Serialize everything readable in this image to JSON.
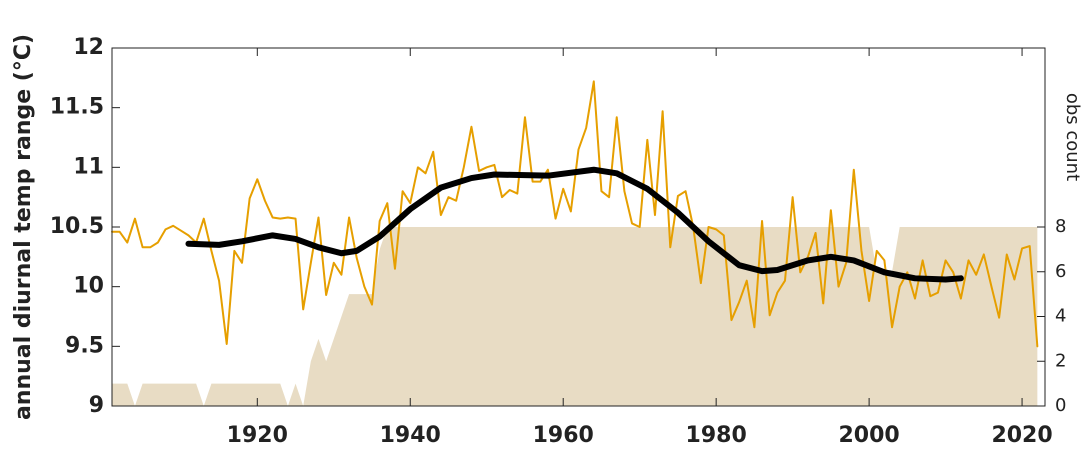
{
  "chart_data": {
    "type": "line",
    "ylabel": "annual diurnal temp range (°C)",
    "y2label": "obs count",
    "xlim": [
      1901,
      2023
    ],
    "xticks": [
      1920,
      1940,
      1960,
      1980,
      2000,
      2020
    ],
    "ylim": [
      9,
      12
    ],
    "yticks": [
      9,
      9.5,
      10,
      10.5,
      11,
      11.5,
      12
    ],
    "y2lim": [
      0,
      16
    ],
    "y2ticks": [
      0,
      2,
      4,
      6,
      8
    ],
    "series": [
      {
        "kind": "area",
        "axis": "y2",
        "color": "#e8dcc4",
        "x": [
          1901,
          1902,
          1903,
          1904,
          1905,
          1906,
          1907,
          1908,
          1909,
          1910,
          1911,
          1912,
          1913,
          1914,
          1915,
          1916,
          1917,
          1918,
          1919,
          1920,
          1921,
          1922,
          1923,
          1924,
          1925,
          1926,
          1927,
          1928,
          1929,
          1930,
          1931,
          1932,
          1933,
          1934,
          1935,
          1936,
          1937,
          1938,
          1939,
          1940,
          1941,
          1942,
          1943,
          1944,
          1945,
          1946,
          1947,
          1948,
          1949,
          1950,
          1951,
          1952,
          1953,
          1954,
          1955,
          1956,
          1957,
          1958,
          1959,
          1960,
          1961,
          1962,
          1963,
          1964,
          1965,
          1966,
          1967,
          1968,
          1969,
          1970,
          1971,
          1972,
          1973,
          1974,
          1975,
          1976,
          1977,
          1978,
          1979,
          1980,
          1981,
          1982,
          1983,
          1984,
          1985,
          1986,
          1987,
          1988,
          1989,
          1990,
          1991,
          1992,
          1993,
          1994,
          1995,
          1996,
          1997,
          1998,
          1999,
          2000,
          2001,
          2002,
          2003,
          2004,
          2005,
          2006,
          2007,
          2008,
          2009,
          2010,
          2011,
          2012,
          2013,
          2014,
          2015,
          2016,
          2017,
          2018,
          2019,
          2020,
          2021,
          2022
        ],
        "values": [
          1,
          1,
          1,
          0,
          1,
          1,
          1,
          1,
          1,
          1,
          1,
          1,
          0,
          1,
          1,
          1,
          1,
          1,
          1,
          1,
          1,
          1,
          1,
          0,
          1,
          0,
          2,
          3,
          2,
          3,
          4,
          5,
          5,
          5,
          5,
          7,
          8,
          8,
          8,
          8,
          8,
          8,
          8,
          8,
          8,
          8,
          8,
          8,
          8,
          8,
          8,
          8,
          8,
          8,
          8,
          8,
          8,
          8,
          8,
          8,
          8,
          8,
          8,
          8,
          8,
          8,
          8,
          8,
          8,
          8,
          8,
          8,
          8,
          8,
          8,
          8,
          8,
          8,
          8,
          8,
          8,
          8,
          8,
          8,
          8,
          8,
          8,
          8,
          8,
          8,
          8,
          8,
          8,
          8,
          8,
          8,
          8,
          8,
          8,
          8,
          6,
          6,
          6,
          8,
          8,
          8,
          8,
          8,
          8,
          8,
          8,
          8,
          8,
          8,
          8,
          8,
          8,
          8,
          8,
          8,
          8,
          8
        ]
      },
      {
        "kind": "line",
        "color": "#e69f00",
        "width": 2,
        "x": [
          1901,
          1902,
          1903,
          1904,
          1905,
          1906,
          1907,
          1908,
          1909,
          1910,
          1911,
          1912,
          1913,
          1914,
          1915,
          1916,
          1917,
          1918,
          1919,
          1920,
          1921,
          1922,
          1923,
          1924,
          1925,
          1926,
          1927,
          1928,
          1929,
          1930,
          1931,
          1932,
          1933,
          1934,
          1935,
          1936,
          1937,
          1938,
          1939,
          1940,
          1941,
          1942,
          1943,
          1944,
          1945,
          1946,
          1947,
          1948,
          1949,
          1950,
          1951,
          1952,
          1953,
          1954,
          1955,
          1956,
          1957,
          1958,
          1959,
          1960,
          1961,
          1962,
          1963,
          1964,
          1965,
          1966,
          1967,
          1968,
          1969,
          1970,
          1971,
          1972,
          1973,
          1974,
          1975,
          1976,
          1977,
          1978,
          1979,
          1980,
          1981,
          1982,
          1983,
          1984,
          1985,
          1986,
          1987,
          1988,
          1989,
          1990,
          1991,
          1992,
          1993,
          1994,
          1995,
          1996,
          1997,
          1998,
          1999,
          2000,
          2001,
          2002,
          2003,
          2004,
          2005,
          2006,
          2007,
          2008,
          2009,
          2010,
          2011,
          2012,
          2013,
          2014,
          2015,
          2016,
          2017,
          2018,
          2019,
          2020,
          2021,
          2022
        ],
        "values": [
          10.46,
          10.46,
          10.37,
          10.57,
          10.33,
          10.33,
          10.37,
          10.48,
          10.51,
          10.47,
          10.43,
          10.37,
          10.57,
          10.3,
          10.05,
          9.52,
          10.3,
          10.2,
          10.74,
          10.9,
          10.72,
          10.58,
          10.57,
          10.58,
          10.57,
          9.81,
          10.2,
          10.58,
          9.93,
          10.2,
          10.1,
          10.58,
          10.24,
          10.0,
          9.85,
          10.55,
          10.7,
          10.15,
          10.8,
          10.7,
          11.0,
          10.95,
          11.13,
          10.6,
          10.75,
          10.72,
          11.0,
          11.34,
          10.97,
          11.0,
          11.02,
          10.75,
          10.81,
          10.78,
          11.42,
          10.88,
          10.88,
          10.98,
          10.57,
          10.82,
          10.63,
          11.15,
          11.33,
          11.72,
          10.8,
          10.75,
          11.42,
          10.8,
          10.53,
          10.5,
          11.23,
          10.6,
          11.47,
          10.33,
          10.76,
          10.8,
          10.5,
          10.03,
          10.5,
          10.48,
          10.43,
          9.72,
          9.87,
          10.05,
          9.66,
          10.55,
          9.76,
          9.95,
          10.05,
          10.75,
          10.12,
          10.25,
          10.45,
          9.86,
          10.64,
          10.0,
          10.2,
          10.98,
          10.3,
          9.88,
          10.3,
          10.22,
          9.66,
          10.0,
          10.12,
          9.9,
          10.22,
          9.92,
          9.95,
          10.22,
          10.12,
          9.9,
          10.22,
          10.1,
          10.27,
          10.0,
          9.74,
          10.27,
          10.06,
          10.32,
          10.34,
          9.5
        ]
      },
      {
        "kind": "line",
        "color": "#000000",
        "width": 6,
        "x": [
          1911,
          1915,
          1918,
          1922,
          1925,
          1928,
          1931,
          1933,
          1936,
          1940,
          1944,
          1948,
          1951,
          1958,
          1964,
          1967,
          1971,
          1975,
          1979,
          1983,
          1986,
          1988,
          1992,
          1995,
          1998,
          2002,
          2006,
          2010,
          2012
        ],
        "values": [
          10.36,
          10.35,
          10.38,
          10.43,
          10.4,
          10.33,
          10.28,
          10.3,
          10.42,
          10.65,
          10.83,
          10.91,
          10.94,
          10.93,
          10.98,
          10.95,
          10.82,
          10.62,
          10.38,
          10.18,
          10.13,
          10.14,
          10.22,
          10.25,
          10.22,
          10.12,
          10.07,
          10.06,
          10.07
        ]
      }
    ]
  }
}
